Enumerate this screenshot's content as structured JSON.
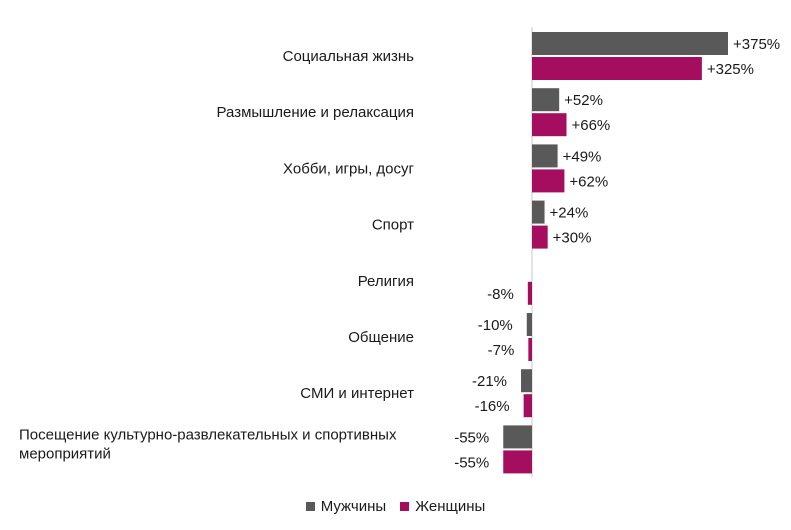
{
  "chart_data": {
    "type": "bar",
    "orientation": "horizontal",
    "categories": [
      "Социальная жизнь",
      "Размышление и релаксация",
      "Хобби, игры, досуг",
      "Спорт",
      "Религия",
      "Общение",
      "СМИ и интернет",
      "Посещение культурно-развлекательных и спортивных мероприятий"
    ],
    "series": [
      {
        "name": "Мужчины",
        "color": "#595959",
        "values": [
          375,
          52,
          49,
          24,
          null,
          -10,
          -21,
          -55
        ],
        "labels": [
          "+375%",
          "+52%",
          "+49%",
          "+24%",
          "",
          "-10%",
          "-21%",
          "-55%"
        ]
      },
      {
        "name": "Женщины",
        "color": "#a50d5e",
        "values": [
          325,
          66,
          62,
          30,
          -8,
          -7,
          -16,
          -55
        ],
        "labels": [
          "+325%",
          "+66%",
          "+62%",
          "+30%",
          "-8%",
          "-7%",
          "-16%",
          "-55%"
        ]
      }
    ],
    "legend_position": "bottom",
    "grid": false
  }
}
